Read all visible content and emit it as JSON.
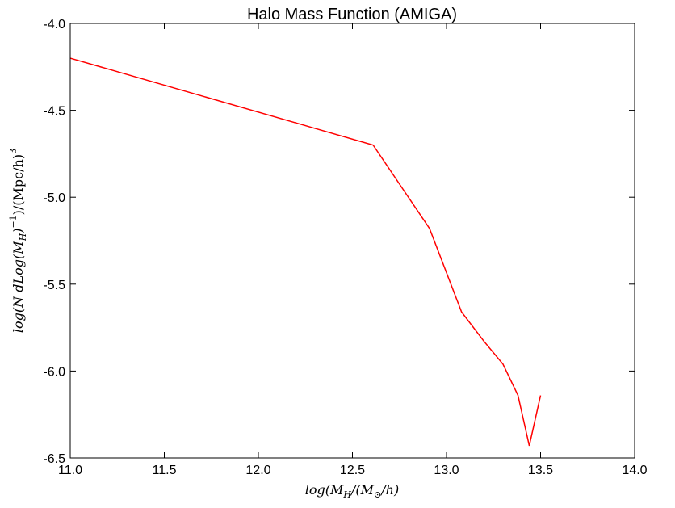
{
  "chart_data": {
    "type": "line",
    "title": "Halo Mass Function (AMIGA)",
    "xlabel_parts": {
      "pre": "log(M",
      "sub1": "H",
      "mid": "/(M",
      "sub2": "⊙",
      "post": "/h)"
    },
    "ylabel_parts": {
      "pre": "log(N dLog(M",
      "sub": "H",
      "mid": ")",
      "sup1": "−1",
      "post": ")/(Mpc/h)",
      "sup2": "3"
    },
    "xlim": [
      11.0,
      14.0
    ],
    "ylim": [
      -6.5,
      -4.0
    ],
    "xticks": [
      "11.0",
      "11.5",
      "12.0",
      "12.5",
      "13.0",
      "13.5",
      "14.0"
    ],
    "yticks": [
      "-4.0",
      "-4.5",
      "-5.0",
      "-5.5",
      "-6.0",
      "-6.5"
    ],
    "grid": false,
    "series": [
      {
        "color": "#ff0000",
        "x": [
          11.0,
          12.61,
          12.91,
          13.08,
          13.2,
          13.3,
          13.38,
          13.44,
          13.5
        ],
        "y": [
          -4.2,
          -4.7,
          -5.18,
          -5.66,
          -5.83,
          -5.96,
          -6.14,
          -6.43,
          -6.14
        ]
      }
    ]
  }
}
